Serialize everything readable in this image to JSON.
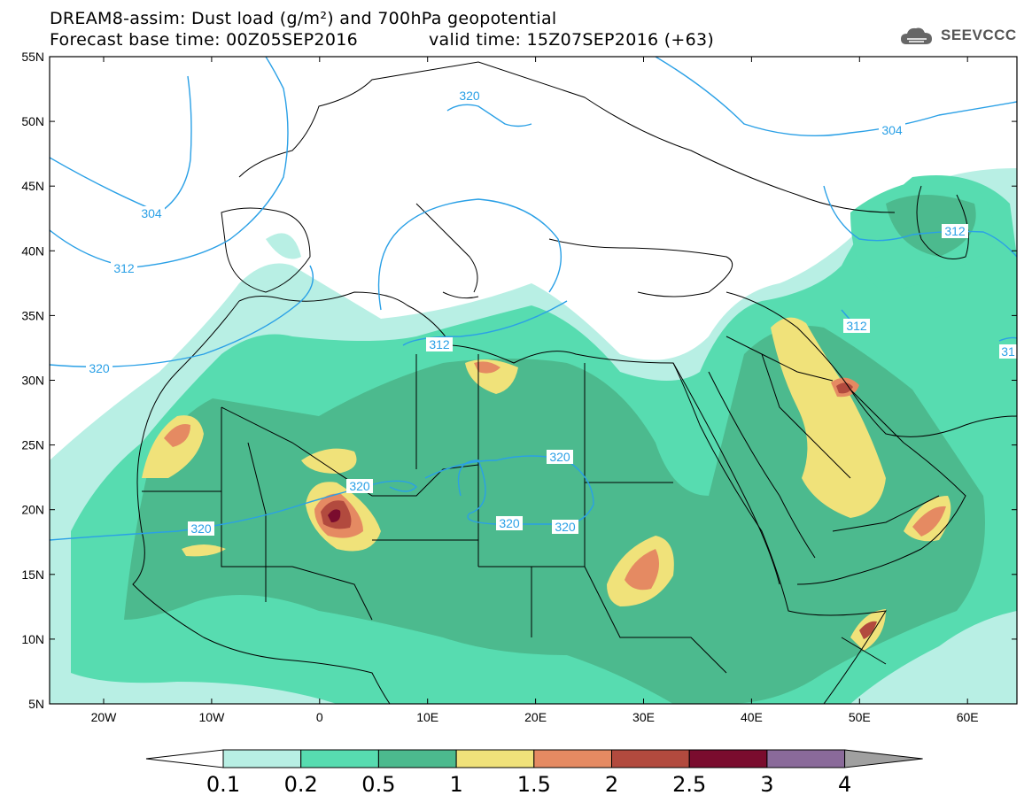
{
  "header": {
    "title": "DREAM8-assim: Dust load (g/m²) and 700hPa geopotential",
    "base_time": "Forecast base time: 00Z05SEP2016",
    "valid_time": "valid time: 15Z07SEP2016 (+63)"
  },
  "logo": {
    "text": "SEEVCCC",
    "icon": "cloud-logo-icon"
  },
  "axes": {
    "lat_labels": [
      "55N",
      "50N",
      "45N",
      "40N",
      "35N",
      "30N",
      "25N",
      "20N",
      "15N",
      "10N",
      "5N"
    ],
    "lon_labels": [
      "20W",
      "10W",
      "0",
      "10E",
      "20E",
      "30E",
      "40E",
      "50E",
      "60E"
    ]
  },
  "contour_labels": [
    {
      "text": "304"
    },
    {
      "text": "312"
    },
    {
      "text": "320"
    },
    {
      "text": "320"
    },
    {
      "text": "312"
    },
    {
      "text": "320"
    },
    {
      "text": "320"
    },
    {
      "text": "320"
    },
    {
      "text": "320"
    },
    {
      "text": "320"
    },
    {
      "text": "304"
    },
    {
      "text": "312"
    },
    {
      "text": "312"
    },
    {
      "text": "31"
    }
  ],
  "colorbar": {
    "labels": [
      "0.1",
      "0.2",
      "0.5",
      "1",
      "1.5",
      "2",
      "2.5",
      "3",
      "4"
    ],
    "colors": [
      "#ffffff",
      "#b8efe4",
      "#57dcb0",
      "#4cba8e",
      "#f0e27a",
      "#e58a62",
      "#b24a3e",
      "#7a0c2e",
      "#8a6a9a",
      "#a0a0a0"
    ]
  },
  "map_colors": {
    "c1": "#b8efe4",
    "c2": "#57dcb0",
    "c3": "#4cba8e",
    "c4": "#f0e27a",
    "c5": "#e58a62",
    "c6": "#b24a3e",
    "c7": "#7a0c2e",
    "contour": "#2aa0e6"
  }
}
